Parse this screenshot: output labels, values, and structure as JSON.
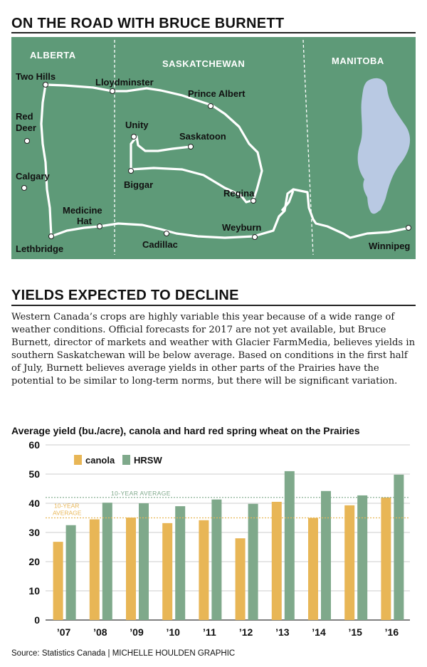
{
  "map": {
    "title": "ON THE ROAD WITH BRUCE BURNETT",
    "provinces": [
      "ALBERTA",
      "SASKATCHEWAN",
      "MANITOBA"
    ],
    "cities": [
      {
        "name": "Two Hills",
        "label": "Two Hills"
      },
      {
        "name": "Lloydminster",
        "label": "Lloydminster"
      },
      {
        "name": "Prince Albert",
        "label": "Prince Albert"
      },
      {
        "name": "Red Deer",
        "label": "Red Deer"
      },
      {
        "name": "Unity",
        "label": "Unity"
      },
      {
        "name": "Saskatoon",
        "label": "Saskatoon"
      },
      {
        "name": "Calgary",
        "label": "Calgary"
      },
      {
        "name": "Biggar",
        "label": "Biggar"
      },
      {
        "name": "Regina",
        "label": "Regina"
      },
      {
        "name": "Medicine Hat",
        "label": "Medicine Hat"
      },
      {
        "name": "Weyburn",
        "label": "Weyburn"
      },
      {
        "name": "Lethbridge",
        "label": "Lethbridge"
      },
      {
        "name": "Cadillac",
        "label": "Cadillac"
      },
      {
        "name": "Winnipeg",
        "label": "Winnipeg"
      }
    ],
    "colors": {
      "land": "#5e9a78",
      "route": "#ffffff",
      "lake": "#b9c9e3"
    }
  },
  "section": {
    "heading": "YIELDS EXPECTED TO DECLINE",
    "body": "Western Canada’s crops are highly variable this year because of a wide range of weather conditions. Official forecasts for 2017 are not yet available, but Bruce Burnett, director of markets and weather with Glacier FarmMedia, believes yields in southern Saskatchewan will be below average. Based on conditions in the first half of July, Burnett believes average yields in other parts of the Prairies have the potential to be similar to long-term norms, but there will be significant variation."
  },
  "chart_data": {
    "type": "bar",
    "title": "Average yield (bu./acre), canola and hard red spring wheat on the Prairies",
    "categories": [
      "’07",
      "’08",
      "’09",
      "’10",
      "’11",
      "’12",
      "’13",
      "’14",
      "’15",
      "’16"
    ],
    "series": [
      {
        "name": "canola",
        "color": "#e8b656",
        "values": [
          26.8,
          34.5,
          35.1,
          33.2,
          34.2,
          28.0,
          40.5,
          35.0,
          39.3,
          42.0
        ]
      },
      {
        "name": "HRSW",
        "color": "#7fa98b",
        "values": [
          32.5,
          40.2,
          40.0,
          39.0,
          41.3,
          39.8,
          51.0,
          44.2,
          42.7,
          49.8
        ]
      }
    ],
    "reference_lines": [
      {
        "label": "10-YEAR AVERAGE",
        "value": 42,
        "series": "HRSW"
      },
      {
        "label": "10-YEAR AVERAGE",
        "value": 35,
        "series": "canola"
      }
    ],
    "yticks": [
      "0",
      "10",
      "20",
      "30",
      "40",
      "50",
      "60"
    ],
    "ylim": [
      0,
      60
    ],
    "legend_position": "top-left"
  },
  "footer": {
    "source": "Source: Statistics Canada  |  MICHELLE HOULDEN GRAPHIC"
  }
}
